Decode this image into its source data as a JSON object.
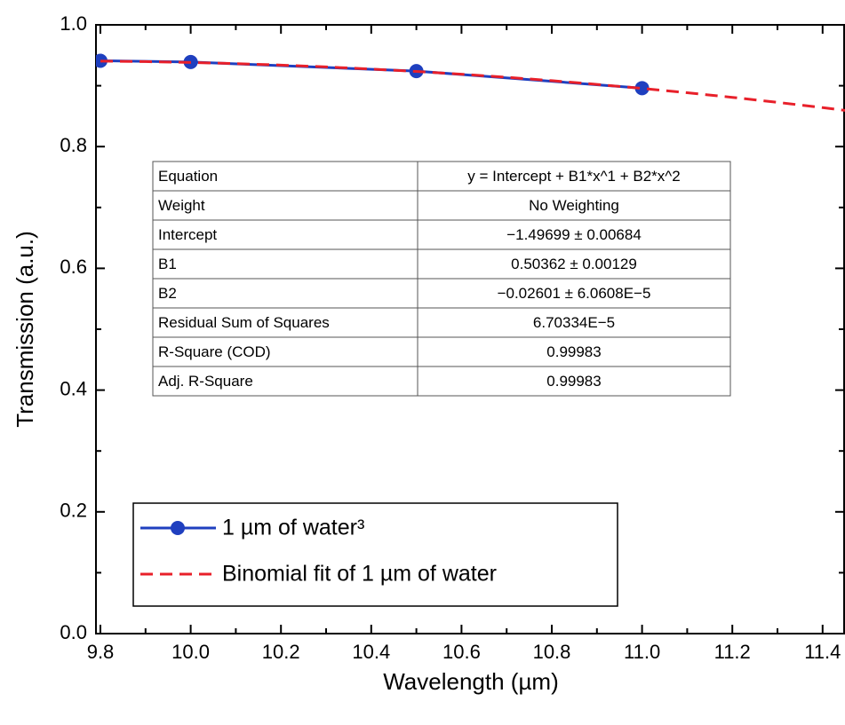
{
  "chart_data": {
    "type": "line",
    "xlabel": "Wavelength (µm)",
    "ylabel": "Transmission (a.u.)",
    "xlim": [
      9.8,
      11.45
    ],
    "ylim": [
      0,
      1
    ],
    "xticks": [
      9.8,
      {
        "value": 10,
        "label": "10.0"
      },
      10.2,
      10.4,
      10.6,
      10.8,
      {
        "value": 11,
        "label": "11.0"
      },
      11.2,
      11.4
    ],
    "yticks": [
      {
        "value": 0,
        "label": "0.0"
      },
      0.2,
      0.4,
      0.6,
      0.8,
      {
        "value": 1,
        "label": "1.0"
      }
    ],
    "series": [
      {
        "name": "1 µm of water³",
        "color": "#1f3fbf",
        "x": [
          9.8,
          10.0,
          10.5,
          11.0
        ],
        "values": [
          0.941,
          0.939,
          0.924,
          0.896
        ],
        "marker": true
      },
      {
        "name": "Binomial fit of 1 µm of water",
        "color": "#e8202a",
        "x": [
          9.8,
          9.9,
          10.0,
          10.1,
          10.2,
          10.3,
          10.4,
          10.5,
          10.6,
          10.7,
          10.8,
          10.9,
          11.0,
          11.1,
          11.2,
          11.3,
          11.4,
          11.45
        ],
        "values": [
          0.9405,
          0.9396,
          0.9382,
          0.9363,
          0.9339,
          0.9309,
          0.9274,
          0.9234,
          0.9189,
          0.9139,
          0.9083,
          0.9022,
          0.8956,
          0.8885,
          0.8809,
          0.8727,
          0.864,
          0.8595
        ],
        "dash": true
      }
    ],
    "fit_table": [
      [
        "Equation",
        "y = Intercept + B1*x^1 + B2*x^2"
      ],
      [
        "Weight",
        "No Weighting"
      ],
      [
        "Intercept",
        "−1.49699 ± 0.00684"
      ],
      [
        "B1",
        "0.50362 ± 0.00129"
      ],
      [
        "B2",
        "−0.02601 ± 6.0608E−5"
      ],
      [
        "Residual Sum of Squares",
        "6.70334E−5"
      ],
      [
        "R-Square (COD)",
        "0.99983"
      ],
      [
        "Adj. R-Square",
        "0.99983"
      ]
    ]
  }
}
